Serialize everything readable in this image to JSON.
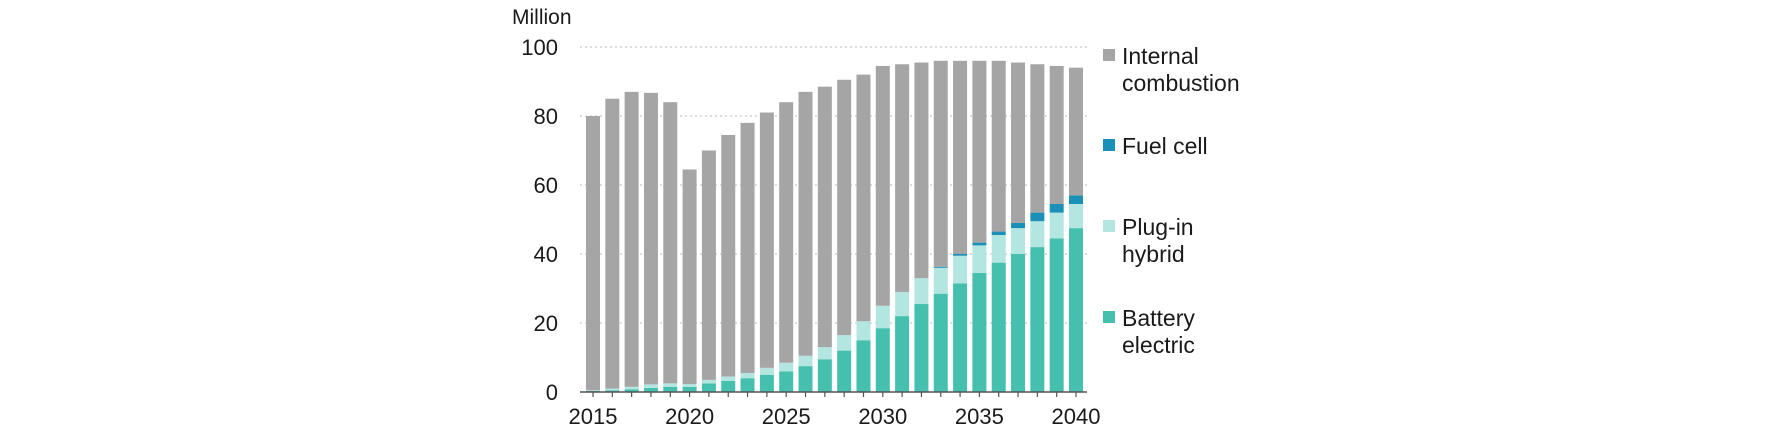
{
  "chart_data": {
    "type": "bar",
    "stacked": true,
    "unit_label": "Million",
    "x": [
      2015,
      2016,
      2017,
      2018,
      2019,
      2020,
      2021,
      2022,
      2023,
      2024,
      2025,
      2026,
      2027,
      2028,
      2029,
      2030,
      2031,
      2032,
      2033,
      2034,
      2035,
      2036,
      2037,
      2038,
      2039,
      2040
    ],
    "x_tick_labels": [
      "2015",
      "2020",
      "2025",
      "2030",
      "2035",
      "2040"
    ],
    "y_ticks": [
      0,
      20,
      40,
      60,
      80,
      100
    ],
    "ylim": [
      0,
      100
    ],
    "grid": "horizontal-dotted",
    "legend_placement": "right",
    "series": [
      {
        "name": "Battery electric",
        "color": "#45bfae",
        "values": [
          0.3,
          0.5,
          0.8,
          1.2,
          1.5,
          1.5,
          2.5,
          3.2,
          4,
          5,
          6,
          7.5,
          9.5,
          12,
          15,
          18.5,
          22,
          25.5,
          28.5,
          31.5,
          34.5,
          37.5,
          40,
          42,
          44.5,
          47.5
        ]
      },
      {
        "name": "Plug-in hybrid",
        "color": "#b3e6e1",
        "values": [
          0.2,
          0.5,
          0.7,
          1,
          1,
          0.8,
          1,
          1.3,
          1.5,
          2,
          2.5,
          3,
          3.5,
          4.5,
          5.5,
          6.5,
          7,
          7.5,
          7.5,
          8,
          8,
          8,
          7.5,
          7.5,
          7.5,
          7
        ]
      },
      {
        "name": "Fuel cell",
        "color": "#1a8fb8",
        "values": [
          0,
          0,
          0,
          0,
          0,
          0,
          0,
          0,
          0,
          0,
          0,
          0,
          0,
          0,
          0,
          0,
          0,
          0,
          0.3,
          0.5,
          0.8,
          1,
          1.5,
          2.5,
          2.5,
          2.5
        ]
      },
      {
        "name": "Internal combustion",
        "color": "#a5a5a5",
        "values": [
          79.5,
          84,
          85.5,
          84.5,
          81.5,
          62.2,
          66.5,
          70,
          72.5,
          74,
          75.5,
          76.5,
          75.5,
          74,
          71.5,
          69.5,
          66,
          62.5,
          59.7,
          56,
          52.7,
          49.5,
          46.5,
          43,
          40,
          37
        ]
      }
    ],
    "legend": [
      {
        "series": "Internal combustion",
        "lines": [
          "Internal",
          "combustion"
        ]
      },
      {
        "series": "Fuel cell",
        "lines": [
          "Fuel cell"
        ]
      },
      {
        "series": "Plug-in hybrid",
        "lines": [
          "Plug-in",
          "hybrid"
        ]
      },
      {
        "series": "Battery electric",
        "lines": [
          "Battery",
          "electric"
        ]
      }
    ]
  }
}
